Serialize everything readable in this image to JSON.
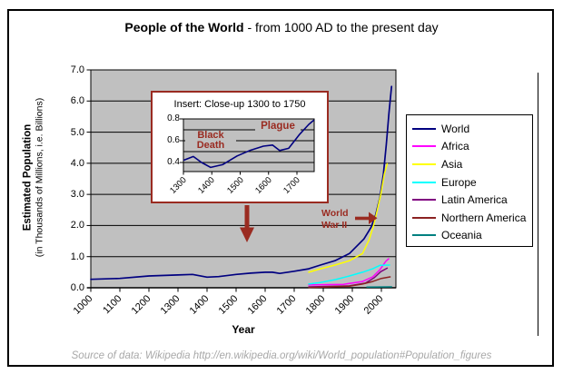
{
  "figure": {
    "title_bold": "People of the World",
    "title_rest": " - from 1000 AD to the present day",
    "source": "Source of data: Wikipedia  http://en.wikipedia.org/wiki/World_population#Population_figures"
  },
  "axes": {
    "y_title_line1": "Estimated Population",
    "y_title_line2": "(in Thousands of Millions, i.e. Billions)",
    "x_title": "Year",
    "y_ticks": [
      "7.0",
      "6.0",
      "5.0",
      "4.0",
      "3.0",
      "2.0",
      "1.0",
      "0.0"
    ],
    "x_ticks": [
      "1000",
      "1100",
      "1200",
      "1300",
      "1400",
      "1500",
      "1600",
      "1700",
      "1800",
      "1900",
      "2000"
    ]
  },
  "legend": {
    "items": [
      {
        "label": "World",
        "color": "#000080"
      },
      {
        "label": "Africa",
        "color": "#FF00FF"
      },
      {
        "label": "Asia",
        "color": "#FFFF00"
      },
      {
        "label": "Europe",
        "color": "#00FFFF"
      },
      {
        "label": "Latin America",
        "color": "#800080"
      },
      {
        "label": "Northern America",
        "color": "#8B2222"
      },
      {
        "label": "Oceania",
        "color": "#008080"
      }
    ]
  },
  "inset": {
    "title": "Insert:  Close-up 1300 to 1750",
    "y_ticks": [
      "0.8",
      "0.6",
      "0.4"
    ],
    "x_ticks": [
      "1300",
      "1400",
      "1500",
      "1600",
      "1700"
    ],
    "annotation_black_death_line1": "Black",
    "annotation_black_death_line2": "Death",
    "annotation_plague": "Plague"
  },
  "annotations": {
    "ww2_line1": "World",
    "ww2_line2": "War II"
  },
  "colors": {
    "plot_bg": "#C0C0C0",
    "annotation_red": "#9A2B21",
    "source_gray": "#A8A8A8",
    "axis_black": "#000000"
  },
  "chart_data": [
    {
      "type": "line",
      "title": "People of the World - from 1000 AD to the present day",
      "xlabel": "Year",
      "ylabel": "Estimated Population (in Thousands of Millions, i.e. Billions)",
      "xlim": [
        1000,
        2050
      ],
      "ylim": [
        0,
        7
      ],
      "grid": true,
      "legend_position": "right",
      "series": [
        {
          "name": "World",
          "color": "#000080",
          "points": [
            [
              1000,
              0.27
            ],
            [
              1100,
              0.3
            ],
            [
              1200,
              0.38
            ],
            [
              1300,
              0.41
            ],
            [
              1350,
              0.43
            ],
            [
              1400,
              0.34
            ],
            [
              1440,
              0.36
            ],
            [
              1500,
              0.43
            ],
            [
              1550,
              0.47
            ],
            [
              1600,
              0.5
            ],
            [
              1625,
              0.5
            ],
            [
              1650,
              0.46
            ],
            [
              1700,
              0.53
            ],
            [
              1750,
              0.61
            ],
            [
              1790,
              0.73
            ],
            [
              1840,
              0.87
            ],
            [
              1890,
              1.1
            ],
            [
              1940,
              1.57
            ],
            [
              1965,
              1.95
            ],
            [
              1980,
              2.33
            ],
            [
              1995,
              2.9
            ],
            [
              2007,
              3.65
            ],
            [
              2017,
              4.6
            ],
            [
              2026,
              5.6
            ],
            [
              2035,
              6.47
            ]
          ]
        },
        {
          "name": "Africa",
          "color": "#FF00FF",
          "points": [
            [
              1750,
              0.09
            ],
            [
              1870,
              0.11
            ],
            [
              1935,
              0.2
            ],
            [
              1970,
              0.35
            ],
            [
              1995,
              0.58
            ],
            [
              2015,
              0.85
            ],
            [
              2025,
              0.93
            ]
          ]
        },
        {
          "name": "Asia",
          "color": "#FFFF00",
          "points": [
            [
              1750,
              0.5
            ],
            [
              1790,
              0.61
            ],
            [
              1840,
              0.73
            ],
            [
              1890,
              0.87
            ],
            [
              1935,
              1.1
            ],
            [
              1958,
              1.55
            ],
            [
              1973,
              2.0
            ],
            [
              1986,
              2.5
            ],
            [
              1998,
              3.0
            ],
            [
              2010,
              3.65
            ],
            [
              2020,
              3.98
            ]
          ]
        },
        {
          "name": "Europe",
          "color": "#00FFFF",
          "points": [
            [
              1750,
              0.12
            ],
            [
              1790,
              0.17
            ],
            [
              1840,
              0.26
            ],
            [
              1890,
              0.38
            ],
            [
              1935,
              0.5
            ],
            [
              1970,
              0.61
            ],
            [
              1995,
              0.72
            ],
            [
              2028,
              0.73
            ]
          ]
        },
        {
          "name": "Latin America",
          "color": "#800080",
          "points": [
            [
              1750,
              0.03
            ],
            [
              1890,
              0.06
            ],
            [
              1945,
              0.15
            ],
            [
              1975,
              0.32
            ],
            [
              1998,
              0.52
            ],
            [
              2020,
              0.63
            ]
          ]
        },
        {
          "name": "Northern America",
          "color": "#8B2222",
          "points": [
            [
              1750,
              0.01
            ],
            [
              1890,
              0.05
            ],
            [
              1935,
              0.12
            ],
            [
              1970,
              0.2
            ],
            [
              2000,
              0.3
            ],
            [
              2030,
              0.35
            ]
          ]
        },
        {
          "name": "Oceania",
          "color": "#008080",
          "points": [
            [
              1950,
              0.02
            ],
            [
              2035,
              0.03
            ]
          ]
        }
      ]
    },
    {
      "type": "line",
      "title": "Insert:  Close-up 1300 to 1750",
      "xlim": [
        1300,
        1760
      ],
      "ylim": [
        0.32,
        0.8
      ],
      "grid": true,
      "annotations": [
        "Black Death",
        "Plague"
      ],
      "series": [
        {
          "name": "World (close-up)",
          "color": "#000080",
          "points": [
            [
              1300,
              0.42
            ],
            [
              1335,
              0.455
            ],
            [
              1364,
              0.4
            ],
            [
              1396,
              0.355
            ],
            [
              1438,
              0.38
            ],
            [
              1489,
              0.46
            ],
            [
              1534,
              0.51
            ],
            [
              1582,
              0.55
            ],
            [
              1614,
              0.56
            ],
            [
              1639,
              0.51
            ],
            [
              1671,
              0.53
            ],
            [
              1710,
              0.66
            ],
            [
              1742,
              0.75
            ],
            [
              1760,
              0.79
            ]
          ]
        }
      ]
    }
  ]
}
